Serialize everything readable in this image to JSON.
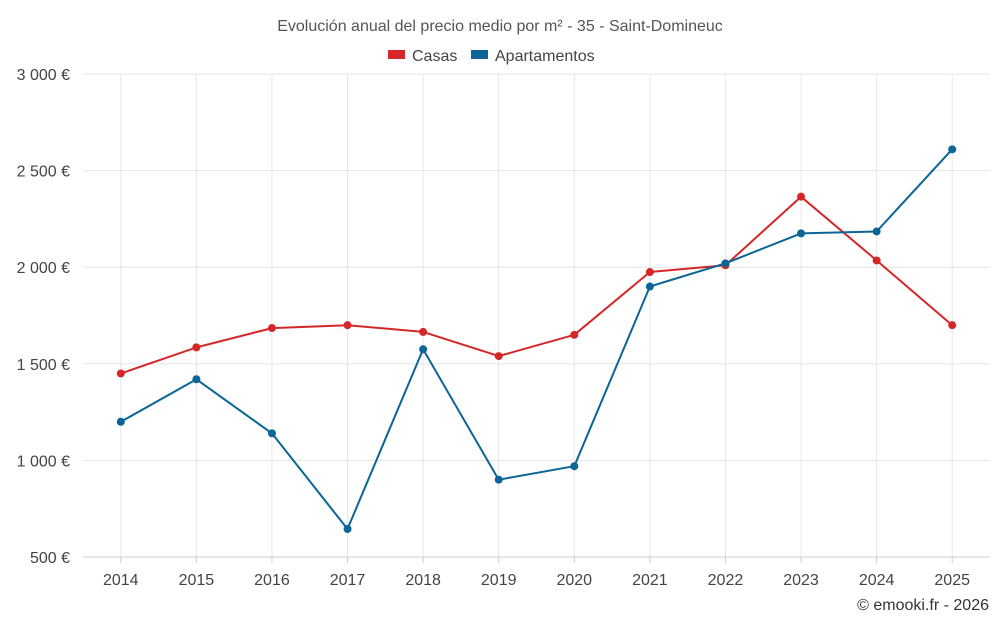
{
  "chart_data": {
    "type": "line",
    "title": "Evolución anual del precio medio por m² - 35 - Saint-Domineuc",
    "categories": [
      "2014",
      "2015",
      "2016",
      "2017",
      "2018",
      "2019",
      "2020",
      "2021",
      "2022",
      "2023",
      "2024",
      "2025"
    ],
    "series": [
      {
        "name": "Casas",
        "color": "#d62728",
        "values": [
          1450,
          1585,
          1685,
          1700,
          1665,
          1540,
          1650,
          1975,
          2010,
          2365,
          2035,
          1700
        ]
      },
      {
        "name": "Apartamentos",
        "color": "#0b6596",
        "values": [
          1200,
          1420,
          1140,
          645,
          1575,
          900,
          970,
          1900,
          2020,
          2175,
          2185,
          2610
        ]
      }
    ],
    "ylim": [
      500,
      3000
    ],
    "yticks": [
      500,
      1000,
      1500,
      2000,
      2500,
      3000
    ],
    "ytick_labels": [
      "500 €",
      "1 000 €",
      "1 500 €",
      "2 000 €",
      "2 500 €",
      "3 000 €"
    ],
    "xlabel": "",
    "ylabel": "",
    "grid": true,
    "legend_position": "top-center",
    "credit": "© emooki.fr - 2026"
  }
}
